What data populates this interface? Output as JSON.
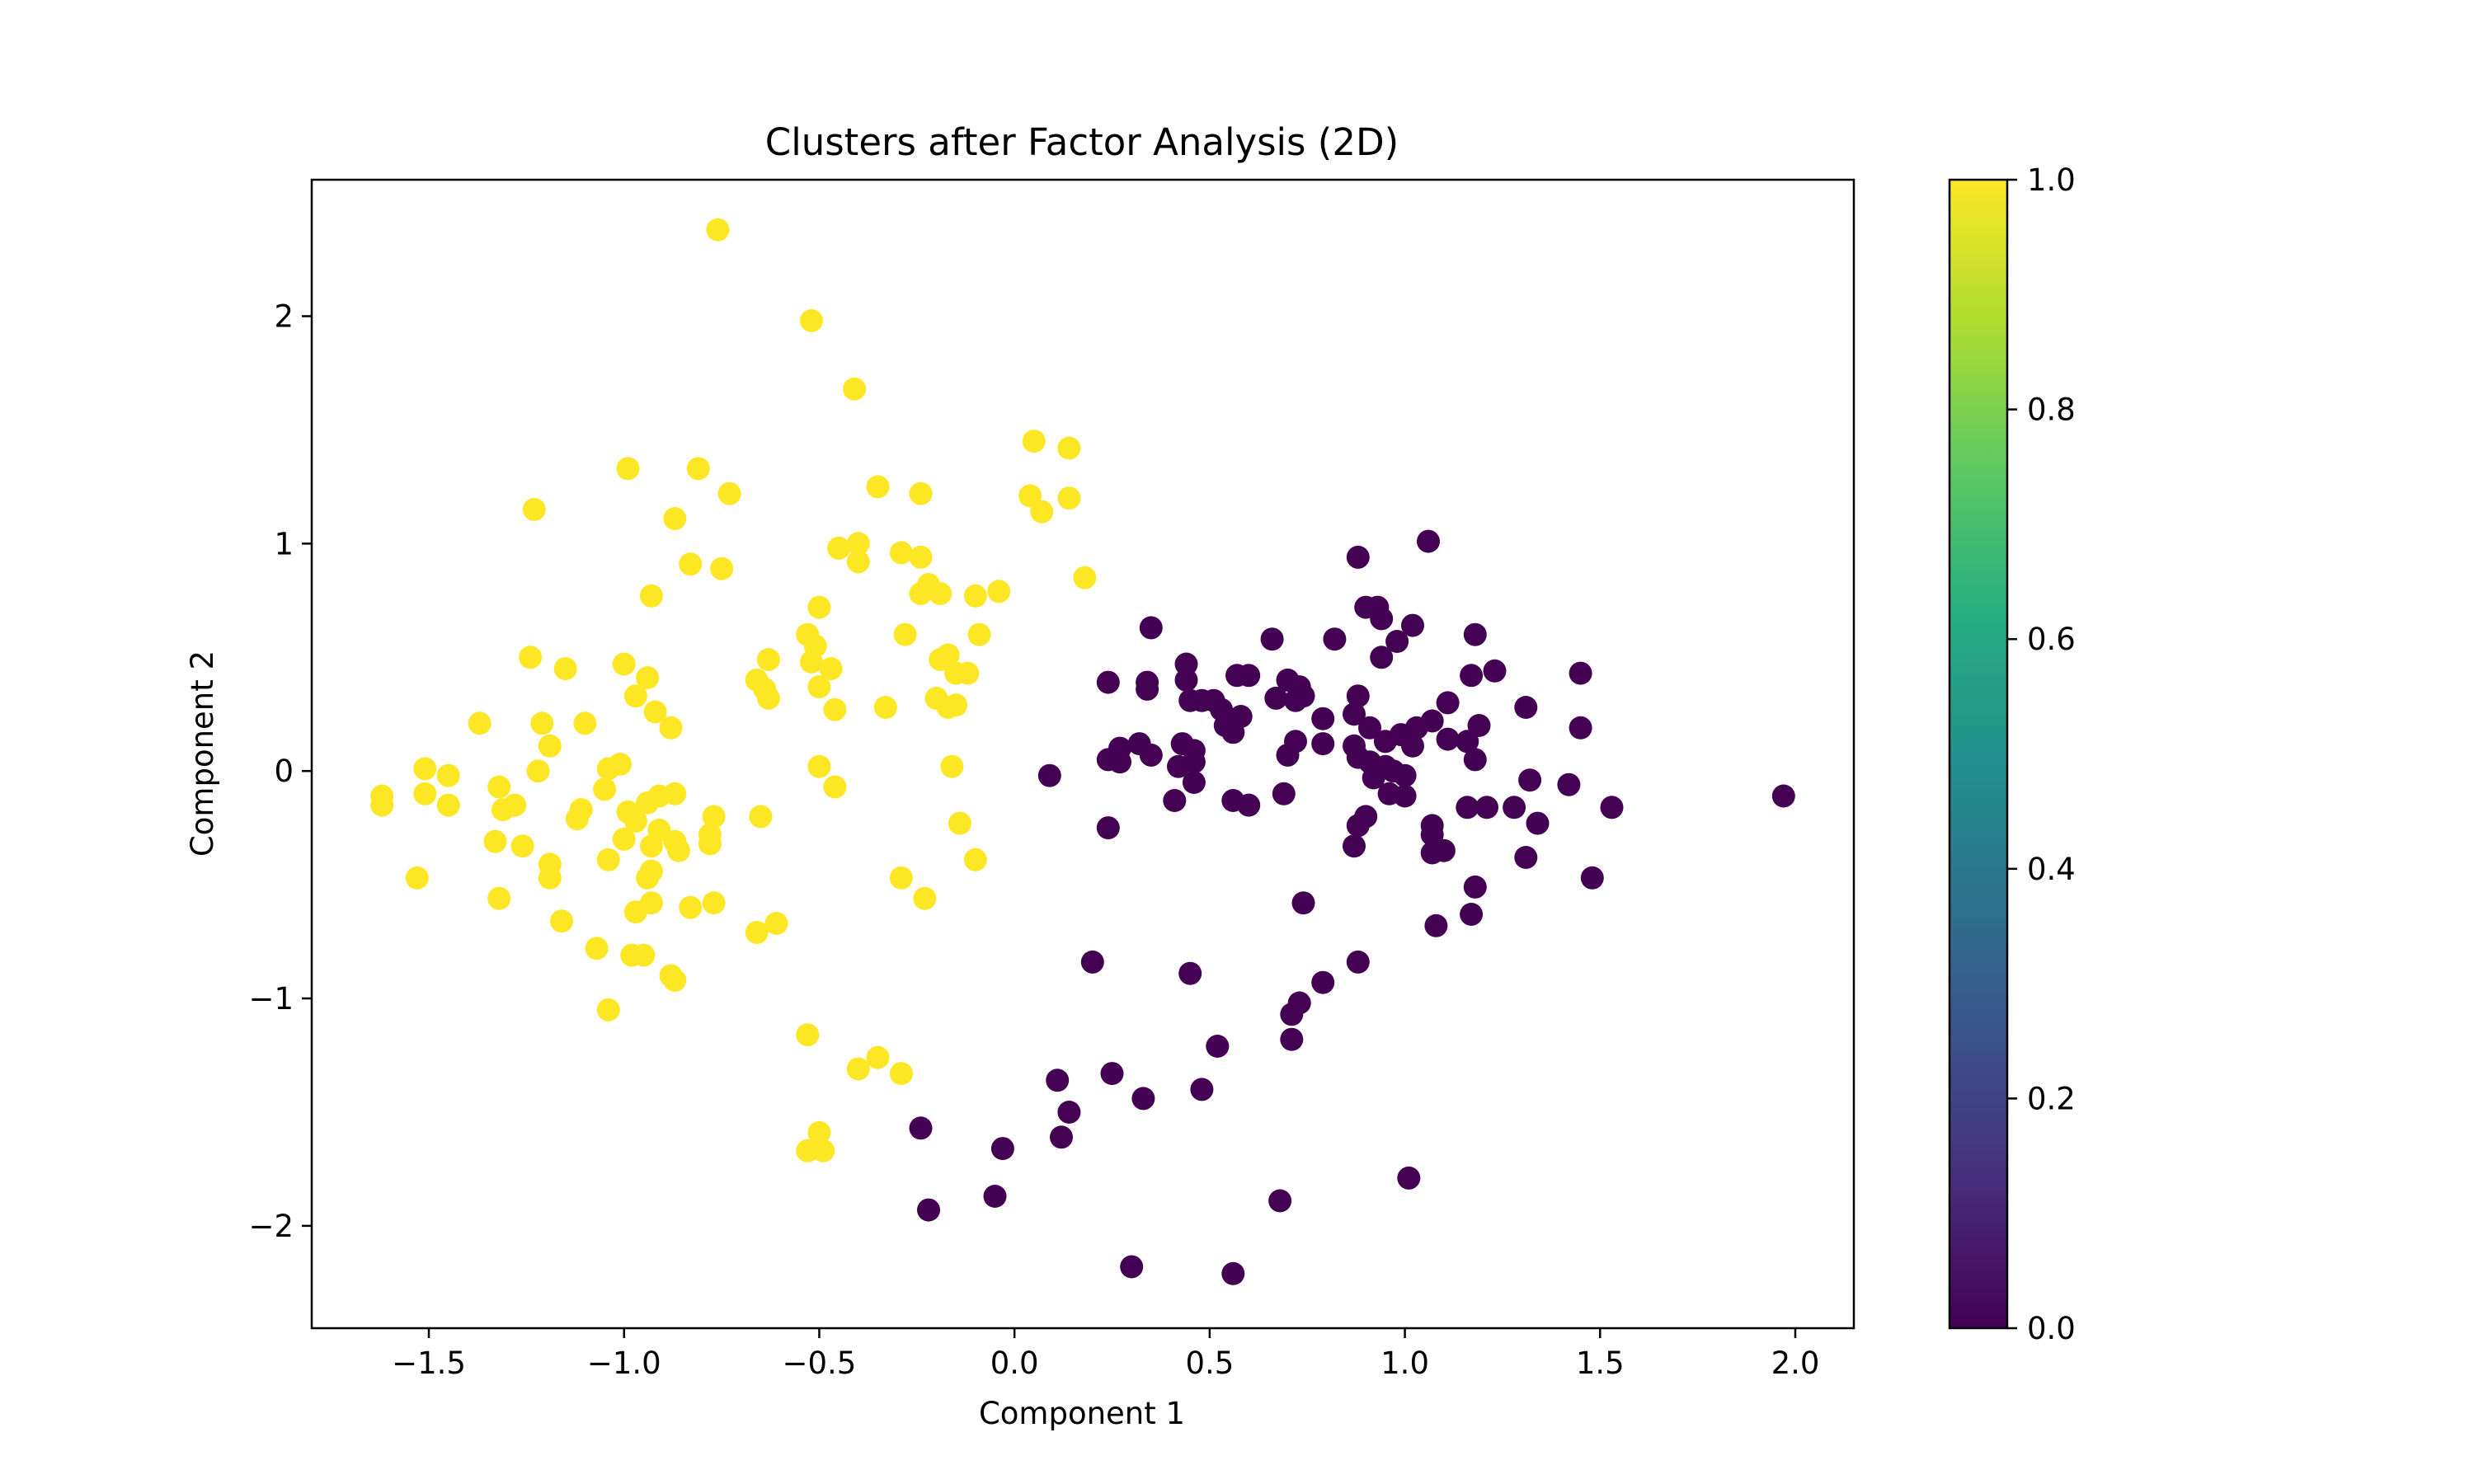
{
  "chart_data": {
    "type": "scatter",
    "title": "Clusters after Factor Analysis (2D)",
    "xlabel": "Component 1",
    "ylabel": "Component 2",
    "xlim": [
      -1.8,
      2.15
    ],
    "ylim": [
      -2.45,
      2.6
    ],
    "xticks": [
      -1.5,
      -1.0,
      -0.5,
      0.0,
      0.5,
      1.0,
      1.5,
      2.0
    ],
    "xtick_labels": [
      "−1.5",
      "−1.0",
      "−0.5",
      "0.0",
      "0.5",
      "1.0",
      "1.5",
      "2.0"
    ],
    "yticks": [
      -2,
      -1,
      0,
      1,
      2
    ],
    "ytick_labels": [
      "−2",
      "−1",
      "0",
      "1",
      "2"
    ],
    "grid": false,
    "colormap": "viridis",
    "colorbar": {
      "range": [
        0.0,
        1.0
      ],
      "ticks": [
        0.0,
        0.2,
        0.4,
        0.6,
        0.8,
        1.0
      ],
      "tick_labels": [
        "0.0",
        "0.2",
        "0.4",
        "0.6",
        "0.8",
        "1.0"
      ]
    },
    "colors": {
      "cluster_0": "#440154",
      "cluster_1": "#fde725"
    },
    "series": [
      {
        "cluster": 1,
        "points": [
          [
            -0.76,
            2.38
          ],
          [
            -0.52,
            1.98
          ],
          [
            -0.41,
            1.68
          ],
          [
            0.05,
            1.45
          ],
          [
            0.14,
            1.42
          ],
          [
            -0.99,
            1.33
          ],
          [
            -0.81,
            1.33
          ],
          [
            -0.35,
            1.25
          ],
          [
            -0.24,
            1.22
          ],
          [
            -0.73,
            1.22
          ],
          [
            0.04,
            1.21
          ],
          [
            0.14,
            1.2
          ],
          [
            -1.23,
            1.15
          ],
          [
            0.07,
            1.14
          ],
          [
            -0.87,
            1.11
          ],
          [
            -0.4,
            1.0
          ],
          [
            -0.45,
            0.98
          ],
          [
            -0.29,
            0.96
          ],
          [
            -0.24,
            0.94
          ],
          [
            -0.4,
            0.92
          ],
          [
            -0.83,
            0.91
          ],
          [
            -0.75,
            0.89
          ],
          [
            0.18,
            0.85
          ],
          [
            -0.22,
            0.82
          ],
          [
            -0.04,
            0.79
          ],
          [
            -0.19,
            0.78
          ],
          [
            -0.24,
            0.78
          ],
          [
            -0.1,
            0.77
          ],
          [
            -0.93,
            0.77
          ],
          [
            -0.5,
            0.72
          ],
          [
            -0.28,
            0.6
          ],
          [
            -0.53,
            0.6
          ],
          [
            -0.09,
            0.6
          ],
          [
            -0.51,
            0.55
          ],
          [
            -0.17,
            0.51
          ],
          [
            -1.24,
            0.5
          ],
          [
            -0.63,
            0.49
          ],
          [
            -0.19,
            0.49
          ],
          [
            -0.52,
            0.48
          ],
          [
            -1.0,
            0.47
          ],
          [
            -0.47,
            0.45
          ],
          [
            -1.15,
            0.45
          ],
          [
            -0.15,
            0.43
          ],
          [
            -0.12,
            0.43
          ],
          [
            -0.94,
            0.41
          ],
          [
            -0.66,
            0.4
          ],
          [
            -0.64,
            0.36
          ],
          [
            -0.5,
            0.37
          ],
          [
            -0.63,
            0.32
          ],
          [
            -0.2,
            0.32
          ],
          [
            -0.97,
            0.33
          ],
          [
            -0.15,
            0.29
          ],
          [
            -0.17,
            0.28
          ],
          [
            -0.46,
            0.27
          ],
          [
            -0.92,
            0.26
          ],
          [
            -0.33,
            0.28
          ],
          [
            -1.37,
            0.21
          ],
          [
            -1.21,
            0.21
          ],
          [
            -1.1,
            0.21
          ],
          [
            -0.88,
            0.19
          ],
          [
            -1.19,
            0.11
          ],
          [
            -1.01,
            0.03
          ],
          [
            -1.04,
            0.01
          ],
          [
            -1.51,
            0.01
          ],
          [
            -1.22,
            0.0
          ],
          [
            -1.45,
            -0.02
          ],
          [
            -0.5,
            0.02
          ],
          [
            -0.16,
            0.02
          ],
          [
            -1.05,
            -0.08
          ],
          [
            -1.32,
            -0.07
          ],
          [
            -0.46,
            -0.07
          ],
          [
            -1.51,
            -0.1
          ],
          [
            -1.62,
            -0.11
          ],
          [
            -0.87,
            -0.1
          ],
          [
            -0.91,
            -0.11
          ],
          [
            -0.94,
            -0.14
          ],
          [
            -1.62,
            -0.15
          ],
          [
            -1.45,
            -0.15
          ],
          [
            -1.28,
            -0.15
          ],
          [
            -1.31,
            -0.17
          ],
          [
            -1.11,
            -0.17
          ],
          [
            -0.99,
            -0.18
          ],
          [
            -0.97,
            -0.22
          ],
          [
            -1.12,
            -0.21
          ],
          [
            -0.77,
            -0.2
          ],
          [
            -0.65,
            -0.2
          ],
          [
            -0.14,
            -0.23
          ],
          [
            -0.91,
            -0.26
          ],
          [
            -0.78,
            -0.28
          ],
          [
            -0.87,
            -0.31
          ],
          [
            -1.33,
            -0.31
          ],
          [
            -1.26,
            -0.33
          ],
          [
            -1.0,
            -0.3
          ],
          [
            -0.93,
            -0.33
          ],
          [
            -0.78,
            -0.32
          ],
          [
            -0.86,
            -0.35
          ],
          [
            -1.04,
            -0.39
          ],
          [
            -0.1,
            -0.39
          ],
          [
            -1.19,
            -0.41
          ],
          [
            -0.93,
            -0.44
          ],
          [
            -0.94,
            -0.47
          ],
          [
            -1.19,
            -0.47
          ],
          [
            -0.29,
            -0.47
          ],
          [
            -1.53,
            -0.47
          ],
          [
            -0.23,
            -0.56
          ],
          [
            -1.32,
            -0.56
          ],
          [
            -0.93,
            -0.58
          ],
          [
            -0.77,
            -0.58
          ],
          [
            -0.83,
            -0.6
          ],
          [
            -0.97,
            -0.62
          ],
          [
            -0.61,
            -0.67
          ],
          [
            -1.16,
            -0.66
          ],
          [
            -0.66,
            -0.71
          ],
          [
            -0.95,
            -0.81
          ],
          [
            -0.98,
            -0.81
          ],
          [
            -1.07,
            -0.78
          ],
          [
            -0.88,
            -0.9
          ],
          [
            -0.87,
            -0.92
          ],
          [
            -1.04,
            -1.05
          ],
          [
            -0.53,
            -1.16
          ],
          [
            -0.35,
            -1.26
          ],
          [
            -0.4,
            -1.31
          ],
          [
            -0.29,
            -1.33
          ],
          [
            -0.5,
            -1.59
          ],
          [
            -0.49,
            -1.67
          ],
          [
            -0.53,
            -1.67
          ]
        ]
      },
      {
        "cluster": 0,
        "points": [
          [
            1.06,
            1.01
          ],
          [
            0.88,
            0.94
          ],
          [
            0.9,
            0.72
          ],
          [
            0.93,
            0.72
          ],
          [
            0.94,
            0.67
          ],
          [
            1.02,
            0.64
          ],
          [
            0.35,
            0.63
          ],
          [
            1.18,
            0.6
          ],
          [
            0.82,
            0.58
          ],
          [
            0.66,
            0.58
          ],
          [
            0.98,
            0.57
          ],
          [
            0.94,
            0.5
          ],
          [
            0.44,
            0.47
          ],
          [
            1.23,
            0.44
          ],
          [
            1.45,
            0.43
          ],
          [
            1.17,
            0.42
          ],
          [
            0.57,
            0.42
          ],
          [
            0.6,
            0.42
          ],
          [
            0.7,
            0.4
          ],
          [
            0.44,
            0.4
          ],
          [
            0.24,
            0.39
          ],
          [
            0.34,
            0.39
          ],
          [
            0.73,
            0.37
          ],
          [
            0.34,
            0.36
          ],
          [
            0.74,
            0.33
          ],
          [
            0.88,
            0.33
          ],
          [
            0.67,
            0.32
          ],
          [
            0.45,
            0.31
          ],
          [
            0.48,
            0.31
          ],
          [
            0.72,
            0.31
          ],
          [
            0.51,
            0.31
          ],
          [
            1.11,
            0.3
          ],
          [
            1.31,
            0.28
          ],
          [
            0.53,
            0.27
          ],
          [
            0.87,
            0.25
          ],
          [
            0.58,
            0.24
          ],
          [
            0.79,
            0.23
          ],
          [
            0.55,
            0.22
          ],
          [
            1.07,
            0.22
          ],
          [
            0.54,
            0.2
          ],
          [
            1.03,
            0.19
          ],
          [
            1.19,
            0.2
          ],
          [
            1.45,
            0.19
          ],
          [
            0.91,
            0.19
          ],
          [
            0.56,
            0.17
          ],
          [
            0.99,
            0.16
          ],
          [
            1.11,
            0.14
          ],
          [
            0.72,
            0.13
          ],
          [
            0.79,
            0.12
          ],
          [
            0.95,
            0.13
          ],
          [
            1.16,
            0.13
          ],
          [
            0.43,
            0.12
          ],
          [
            0.32,
            0.12
          ],
          [
            1.02,
            0.11
          ],
          [
            0.27,
            0.1
          ],
          [
            0.87,
            0.11
          ],
          [
            0.46,
            0.09
          ],
          [
            0.35,
            0.07
          ],
          [
            0.7,
            0.07
          ],
          [
            0.24,
            0.05
          ],
          [
            1.18,
            0.05
          ],
          [
            0.27,
            0.04
          ],
          [
            0.46,
            0.04
          ],
          [
            0.88,
            0.06
          ],
          [
            0.91,
            0.04
          ],
          [
            0.42,
            0.02
          ],
          [
            0.95,
            0.02
          ],
          [
            0.97,
            0.0
          ],
          [
            1.0,
            -0.02
          ],
          [
            0.09,
            -0.02
          ],
          [
            0.92,
            -0.03
          ],
          [
            0.46,
            -0.05
          ],
          [
            1.32,
            -0.04
          ],
          [
            1.42,
            -0.06
          ],
          [
            0.69,
            -0.1
          ],
          [
            0.96,
            -0.1
          ],
          [
            1.0,
            -0.11
          ],
          [
            0.41,
            -0.13
          ],
          [
            0.56,
            -0.13
          ],
          [
            0.6,
            -0.15
          ],
          [
            1.16,
            -0.16
          ],
          [
            1.21,
            -0.16
          ],
          [
            1.28,
            -0.16
          ],
          [
            1.53,
            -0.16
          ],
          [
            1.97,
            -0.11
          ],
          [
            0.9,
            -0.2
          ],
          [
            1.34,
            -0.23
          ],
          [
            0.88,
            -0.24
          ],
          [
            1.07,
            -0.24
          ],
          [
            1.07,
            -0.28
          ],
          [
            0.24,
            -0.25
          ],
          [
            0.87,
            -0.33
          ],
          [
            1.1,
            -0.35
          ],
          [
            1.07,
            -0.36
          ],
          [
            1.31,
            -0.38
          ],
          [
            1.48,
            -0.47
          ],
          [
            1.18,
            -0.51
          ],
          [
            0.74,
            -0.58
          ],
          [
            1.17,
            -0.63
          ],
          [
            1.08,
            -0.68
          ],
          [
            0.2,
            -0.84
          ],
          [
            0.88,
            -0.84
          ],
          [
            0.45,
            -0.89
          ],
          [
            0.79,
            -0.93
          ],
          [
            0.73,
            -1.02
          ],
          [
            0.71,
            -1.07
          ],
          [
            0.71,
            -1.18
          ],
          [
            0.52,
            -1.21
          ],
          [
            0.25,
            -1.33
          ],
          [
            0.11,
            -1.36
          ],
          [
            0.33,
            -1.44
          ],
          [
            0.48,
            -1.4
          ],
          [
            0.14,
            -1.5
          ],
          [
            0.12,
            -1.61
          ],
          [
            -0.24,
            -1.57
          ],
          [
            -0.03,
            -1.66
          ],
          [
            -0.05,
            -1.87
          ],
          [
            -0.22,
            -1.93
          ],
          [
            0.68,
            -1.89
          ],
          [
            1.01,
            -1.79
          ],
          [
            0.3,
            -2.18
          ],
          [
            0.56,
            -2.21
          ]
        ]
      }
    ]
  }
}
